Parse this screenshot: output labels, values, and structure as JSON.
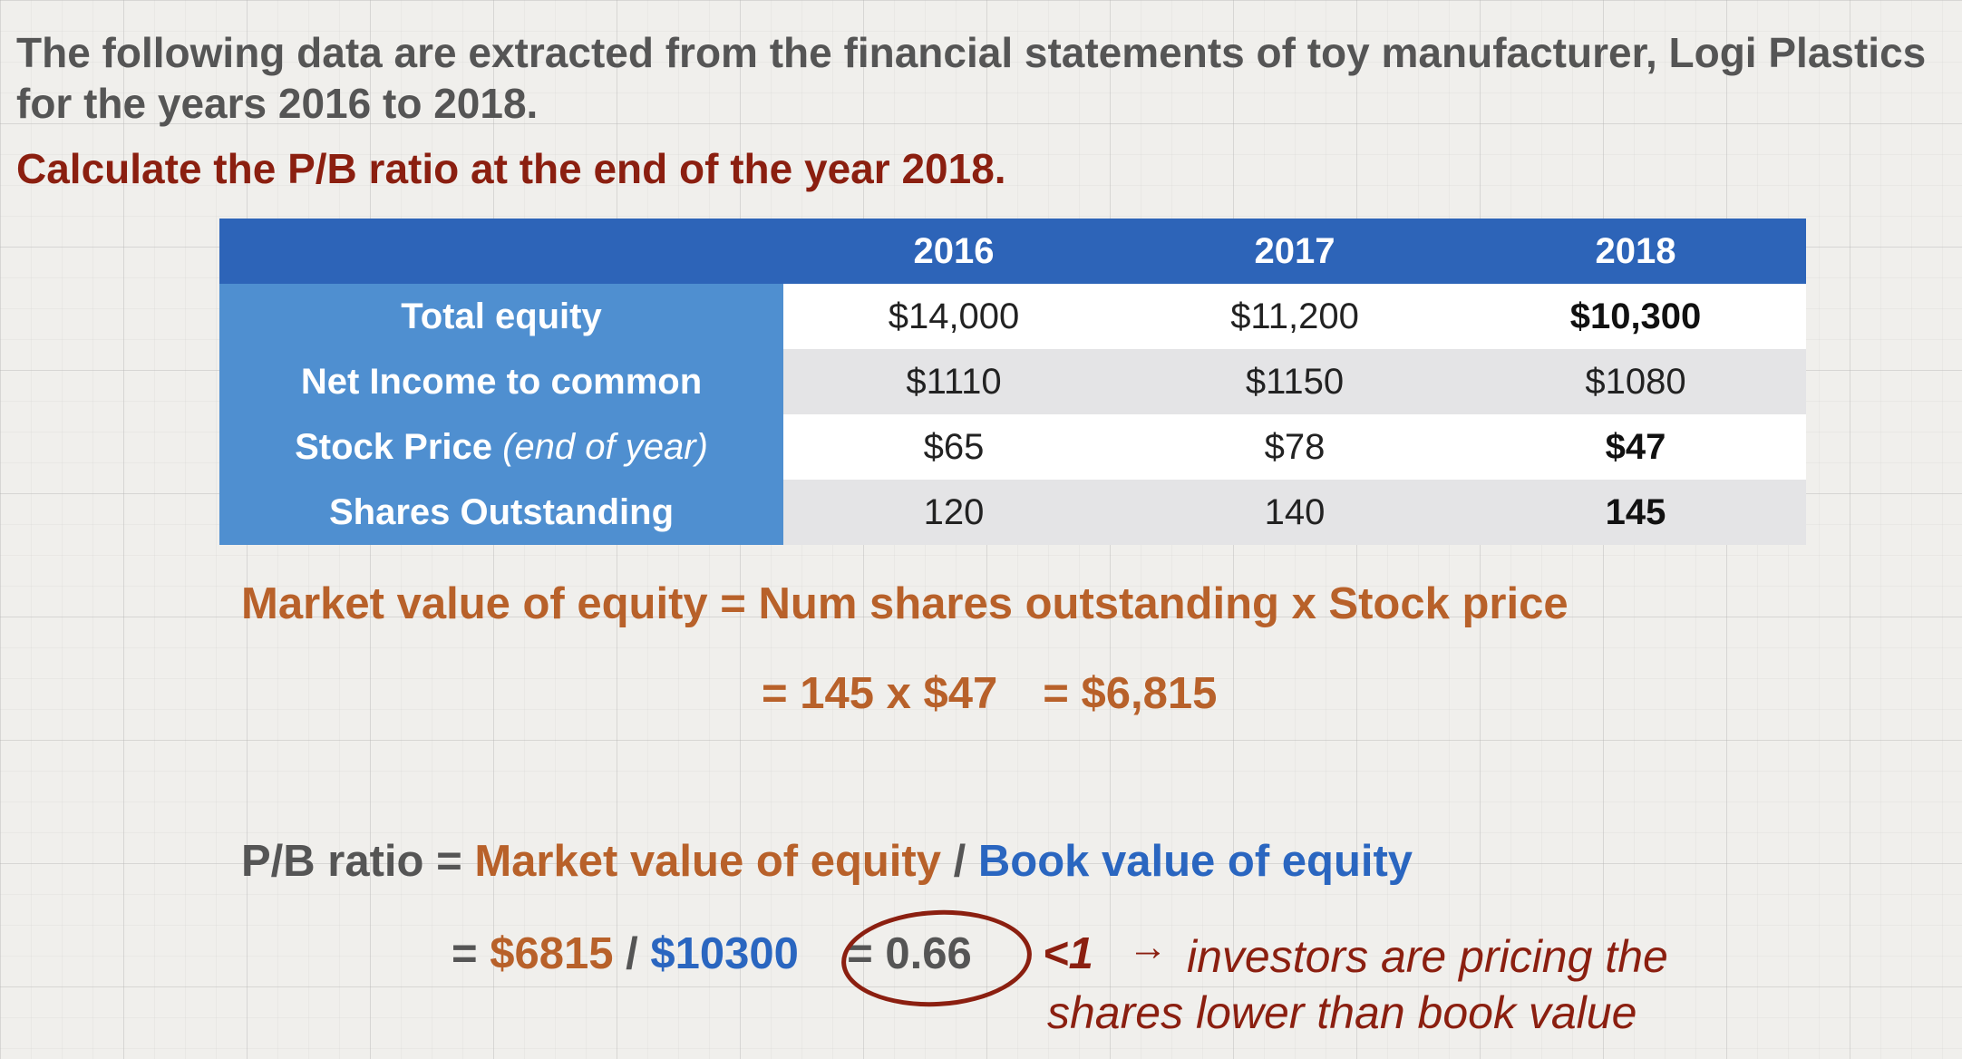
{
  "intro": "The following data are extracted from the financial statements of toy manufacturer, Logi Plastics for the years 2016 to 2018.",
  "task": "Calculate the P/B ratio at the end of the year 2018.",
  "table": {
    "headers": [
      "",
      "2016",
      "2017",
      "2018"
    ],
    "rows": [
      {
        "label": "Total equity",
        "note": "",
        "values": [
          "$14,000",
          "$11,200",
          "$10,300"
        ]
      },
      {
        "label": "Net Income to common",
        "note": "",
        "values": [
          "$1110",
          "$1150",
          "$1080"
        ]
      },
      {
        "label": "Stock Price",
        "note": "(end of year)",
        "values": [
          "$65",
          "$78",
          "$47"
        ]
      },
      {
        "label": "Shares Outstanding",
        "note": "",
        "values": [
          "120",
          "140",
          "145"
        ]
      }
    ]
  },
  "formula1": {
    "lhs": "Market value of equity =",
    "rhs": "Num shares outstanding x Stock price"
  },
  "formula2": {
    "step": "= 145 x $47",
    "result": "= $6,815"
  },
  "formula3": {
    "lhs": "P/B ratio =",
    "market": "Market value of equity",
    "slash": "/",
    "book": "Book value of equity"
  },
  "formula4": {
    "eq": "=",
    "market": "$6815",
    "slash": "/",
    "book": "$10300",
    "result": "= 0.66"
  },
  "conclusion": {
    "lt": "<1",
    "arrow": "→",
    "line1": "investors are pricing the",
    "line2": "shares lower than book value"
  },
  "colors": {
    "header_blue": "#2d64b8",
    "label_blue": "#4f8fd0",
    "orange": "#b8612a",
    "blue_text": "#2a66c0",
    "dark_red": "#8b1f10"
  }
}
